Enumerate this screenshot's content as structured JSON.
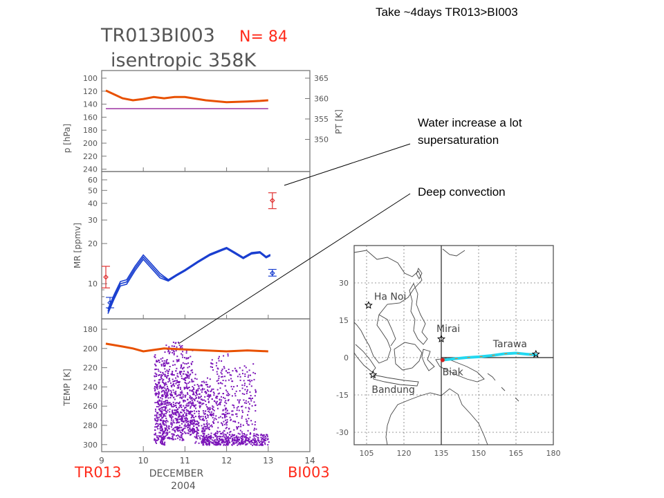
{
  "slide": {
    "title": "Take ~4days TR013>BI003",
    "annotation1": {
      "line1": "Water increase a lot",
      "line2": "supersaturation"
    },
    "annotation2": "Deep convection"
  },
  "figure": {
    "title": "TR013BI003",
    "count_label": "N= 84",
    "subtitle": "isentropic  358K",
    "start_label": "TR013",
    "end_label": "BI003",
    "x_title": "DECEMBER",
    "x_year": "2004",
    "colors": {
      "pressure": "#e85000",
      "theta": "#9b30a0",
      "mr": "#1a3fd0",
      "obs": "#e03030",
      "temp_scatter": "#7a14b8",
      "labels_red": "#ff2a1a"
    }
  },
  "chart_data": [
    {
      "type": "line",
      "panel": "pressure",
      "ylabel": "p [hPa]",
      "ylabel_right": "PT [K]",
      "y_ticks": [
        "100",
        "120",
        "140",
        "160",
        "180",
        "200",
        "220",
        "240"
      ],
      "y_ticks_right": [
        "365",
        "360",
        "355",
        "350"
      ],
      "x_ticks": [
        "9",
        "10",
        "11",
        "12",
        "13",
        "14"
      ],
      "xlim": [
        9,
        14
      ],
      "series": [
        {
          "x": [
            9.1,
            9.3,
            9.5,
            9.75,
            10.0,
            10.25,
            10.5,
            10.75,
            11.0,
            11.5,
            12.0,
            12.5,
            12.8,
            13.0
          ],
          "y": [
            119,
            125,
            131,
            134,
            132,
            129,
            131,
            129,
            129,
            134,
            137,
            136,
            135,
            134
          ]
        },
        {
          "x": [
            9.1,
            13.0
          ],
          "y": [
            147,
            147
          ]
        }
      ]
    },
    {
      "type": "line",
      "panel": "mixing ratio",
      "ylabel": "MR [ppmv]",
      "y_ticks": [
        "10",
        "20",
        "30",
        "40",
        "50",
        "60"
      ],
      "ylim": [
        6,
        60
      ],
      "x_ticks": [
        "9",
        "10",
        "11",
        "12",
        "13",
        "14"
      ],
      "xlim": [
        9,
        14
      ],
      "series": [
        {
          "x": [
            9.15,
            9.3,
            9.45,
            9.6,
            9.8,
            10.0,
            10.2,
            10.4,
            10.6,
            10.8,
            11.0,
            11.3,
            11.6,
            11.9,
            12.0,
            12.2,
            12.4,
            12.6,
            12.8,
            12.95,
            13.05
          ],
          "y": [
            6.2,
            8,
            10,
            10.3,
            13,
            15.8,
            13.5,
            11.5,
            10.6,
            11.6,
            12.6,
            14.5,
            16.5,
            18,
            18.5,
            17,
            15.6,
            16.9,
            17.2,
            15.8,
            16.4
          ]
        },
        {
          "x": [
            9.1
          ],
          "y": [
            11.2
          ],
          "err": [
            9.3,
            13.5
          ]
        },
        {
          "x": [
            9.2
          ],
          "y": [
            7.2
          ],
          "err": [
            6.6,
            7.9
          ]
        },
        {
          "x": [
            13.1
          ],
          "y": [
            42
          ],
          "err": [
            36.5,
            48
          ]
        },
        {
          "x": [
            13.1
          ],
          "y": [
            12.0
          ],
          "err": [
            11.4,
            12.8
          ]
        }
      ]
    },
    {
      "type": "scatter",
      "panel": "temperature",
      "ylabel": "TEMP [K]",
      "y_ticks": [
        "180",
        "200",
        "220",
        "240",
        "260",
        "280",
        "300"
      ],
      "ylim": [
        176,
        306
      ],
      "x_ticks": [
        "9",
        "10",
        "11",
        "12",
        "13",
        "14"
      ],
      "xlim": [
        9,
        14
      ],
      "series": [
        {
          "x": [
            9.1,
            9.5,
            9.75,
            10.0,
            10.5,
            11.0,
            11.5,
            12.0,
            12.5,
            13.0
          ],
          "y": [
            195,
            198,
            200,
            203,
            200,
            201,
            202,
            203,
            202,
            203
          ]
        }
      ]
    },
    {
      "type": "line",
      "panel": "trajectory map",
      "x_ticks": [
        "105",
        "120",
        "135",
        "150",
        "165",
        "180"
      ],
      "y_ticks": [
        "30",
        "15",
        "0",
        "-15",
        "-30"
      ],
      "xlim": [
        100,
        180
      ],
      "ylim": [
        -35,
        45
      ],
      "places": [
        "Ha Noi",
        "Mirai",
        "Tarawa",
        "Biak",
        "Bandung"
      ],
      "series": [
        {
          "x": [
            135.5,
            140,
            145,
            150,
            155,
            160,
            165,
            170,
            173
          ],
          "y": [
            -1,
            -0.5,
            0,
            0.3,
            0.8,
            1.5,
            1.8,
            1.3,
            1.1
          ]
        }
      ]
    }
  ]
}
